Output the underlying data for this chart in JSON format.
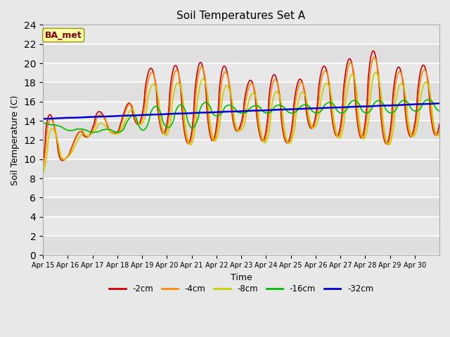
{
  "title": "Soil Temperatures Set A",
  "xlabel": "Time",
  "ylabel": "Soil Temperature (C)",
  "annotation": "BA_met",
  "ylim": [
    0,
    24
  ],
  "yticks": [
    0,
    2,
    4,
    6,
    8,
    10,
    12,
    14,
    16,
    18,
    20,
    22,
    24
  ],
  "background_color": "#e8e8e8",
  "series": [
    {
      "label": "-2cm",
      "color": "#cc0000",
      "lw": 1.2
    },
    {
      "label": "-4cm",
      "color": "#ff8800",
      "lw": 1.2
    },
    {
      "label": "-8cm",
      "color": "#cccc00",
      "lw": 1.2
    },
    {
      "label": "-16cm",
      "color": "#00bb00",
      "lw": 1.2
    },
    {
      "label": "-32cm",
      "color": "#0000cc",
      "lw": 1.8
    }
  ],
  "x_tick_labels": [
    "Apr 15",
    "Apr 16",
    "Apr 17",
    "Apr 18",
    "Apr 19",
    "Apr 20",
    "Apr 21",
    "Apr 22",
    "Apr 23",
    "Apr 24",
    "Apr 25",
    "Apr 26",
    "Apr 27",
    "Apr 28",
    "Apr 29",
    "Apr 30"
  ],
  "n_days": 16,
  "pts_per_day": 48
}
